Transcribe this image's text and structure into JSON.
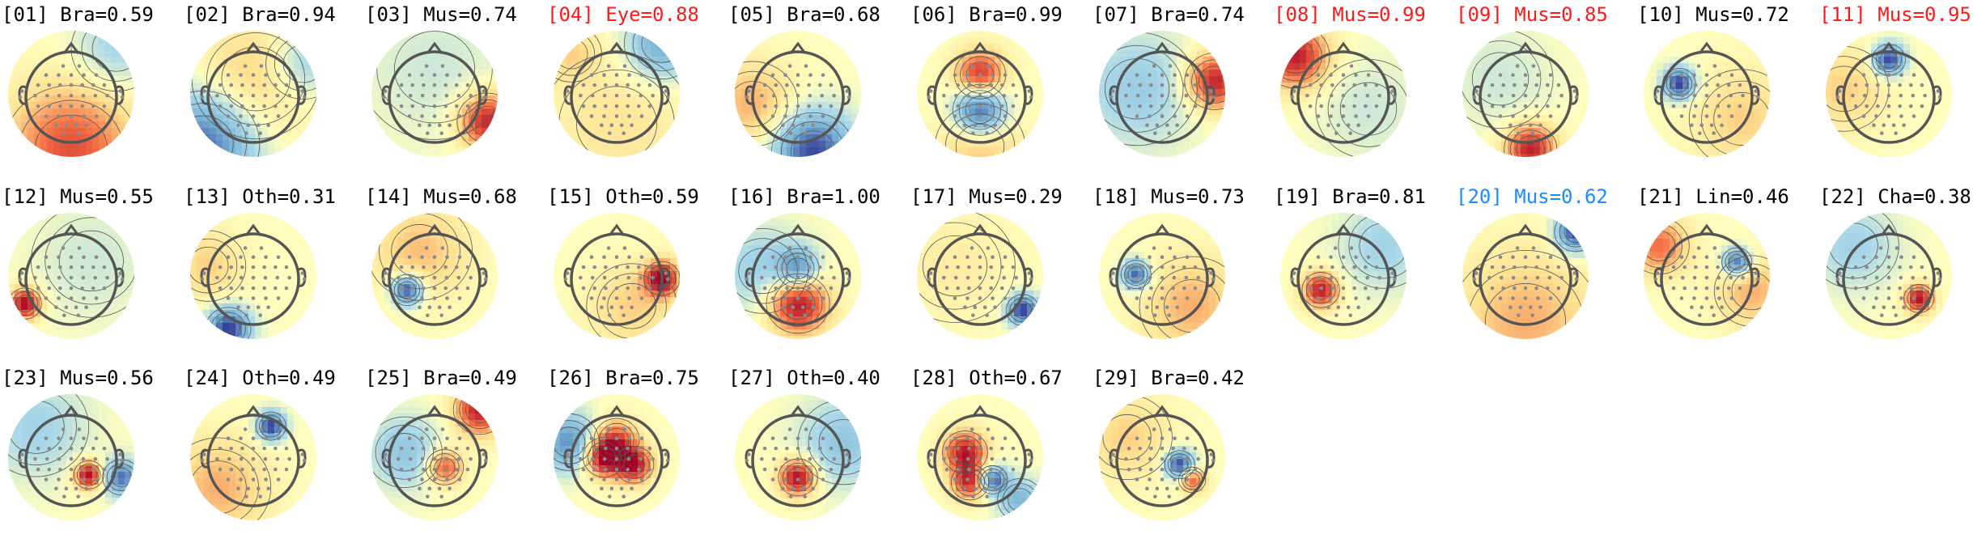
{
  "label_colors": {
    "normal": "#000000",
    "rejected": "#ff1a1a",
    "flagged": "#1a8cff"
  },
  "colormap": "RdYlBu_r",
  "components": [
    {
      "label": "[01] Bra=0.59",
      "status": "normal"
    },
    {
      "label": "[02] Bra=0.94",
      "status": "normal"
    },
    {
      "label": "[03] Mus=0.74",
      "status": "normal"
    },
    {
      "label": "[04] Eye=0.88",
      "status": "rejected"
    },
    {
      "label": "[05] Bra=0.68",
      "status": "normal"
    },
    {
      "label": "[06] Bra=0.99",
      "status": "normal"
    },
    {
      "label": "[07] Bra=0.74",
      "status": "normal"
    },
    {
      "label": "[08] Mus=0.99",
      "status": "rejected"
    },
    {
      "label": "[09] Mus=0.85",
      "status": "rejected"
    },
    {
      "label": "[10] Mus=0.72",
      "status": "normal"
    },
    {
      "label": "[11] Mus=0.95",
      "status": "rejected"
    },
    {
      "label": "[12] Mus=0.55",
      "status": "normal"
    },
    {
      "label": "[13] Oth=0.31",
      "status": "normal"
    },
    {
      "label": "[14] Mus=0.68",
      "status": "normal"
    },
    {
      "label": "[15] Oth=0.59",
      "status": "normal"
    },
    {
      "label": "[16] Bra=1.00",
      "status": "normal"
    },
    {
      "label": "[17] Mus=0.29",
      "status": "normal"
    },
    {
      "label": "[18] Mus=0.73",
      "status": "normal"
    },
    {
      "label": "[19] Bra=0.81",
      "status": "normal"
    },
    {
      "label": "[20] Mus=0.62",
      "status": "flagged"
    },
    {
      "label": "[21] Lin=0.46",
      "status": "normal"
    },
    {
      "label": "[22] Cha=0.38",
      "status": "normal"
    },
    {
      "label": "[23] Mus=0.56",
      "status": "normal"
    },
    {
      "label": "[24] Oth=0.49",
      "status": "normal"
    },
    {
      "label": "[25] Bra=0.49",
      "status": "normal"
    },
    {
      "label": "[26] Bra=0.75",
      "status": "normal"
    },
    {
      "label": "[27] Oth=0.40",
      "status": "normal"
    },
    {
      "label": "[28] Oth=0.67",
      "status": "normal"
    },
    {
      "label": "[29] Bra=0.42",
      "status": "normal"
    }
  ]
}
